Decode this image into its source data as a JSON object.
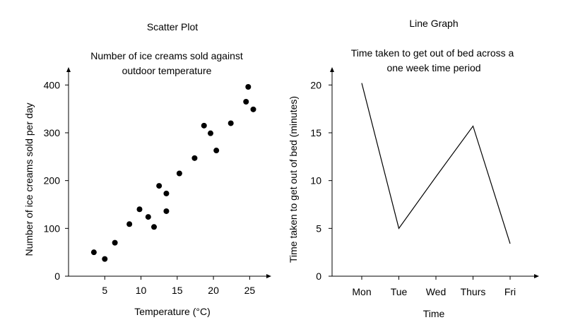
{
  "chart_data": [
    {
      "type": "scatter",
      "heading": "Scatter Plot",
      "title": [
        "Number of ice creams sold against",
        "outdoor temperature"
      ],
      "xlabel": "Temperature (°C)",
      "ylabel": "Number of ice creams sold per day",
      "xlim": [
        0,
        27.5
      ],
      "ylim": [
        0,
        430
      ],
      "xticks": [
        5,
        10,
        15,
        20,
        25
      ],
      "yticks": [
        0,
        100,
        200,
        300,
        400
      ],
      "grid": false,
      "points": [
        {
          "x": 3.5,
          "y": 50
        },
        {
          "x": 5.0,
          "y": 36
        },
        {
          "x": 6.4,
          "y": 70
        },
        {
          "x": 8.4,
          "y": 109
        },
        {
          "x": 9.8,
          "y": 140
        },
        {
          "x": 11.0,
          "y": 124
        },
        {
          "x": 11.8,
          "y": 103
        },
        {
          "x": 12.5,
          "y": 189
        },
        {
          "x": 13.5,
          "y": 173
        },
        {
          "x": 13.5,
          "y": 136
        },
        {
          "x": 15.3,
          "y": 215
        },
        {
          "x": 17.4,
          "y": 247
        },
        {
          "x": 18.7,
          "y": 315
        },
        {
          "x": 19.6,
          "y": 299
        },
        {
          "x": 20.4,
          "y": 263
        },
        {
          "x": 22.4,
          "y": 320
        },
        {
          "x": 24.5,
          "y": 365
        },
        {
          "x": 24.8,
          "y": 396
        },
        {
          "x": 25.5,
          "y": 349
        }
      ]
    },
    {
      "type": "line",
      "heading": "Line Graph",
      "title": [
        "Time taken to get out of bed across a",
        "one week time period"
      ],
      "xlabel": "Time",
      "ylabel": "Time taken to get out of bed (minutes)",
      "categories": [
        "Mon",
        "Tue",
        "Wed",
        "Thurs",
        "Fri"
      ],
      "yticks": [
        0,
        5,
        10,
        15,
        20
      ],
      "ylim": [
        0,
        21.5
      ],
      "grid": false,
      "series": [
        {
          "values": [
            20.2,
            5.0,
            10.4,
            15.7,
            3.4
          ]
        }
      ]
    }
  ]
}
